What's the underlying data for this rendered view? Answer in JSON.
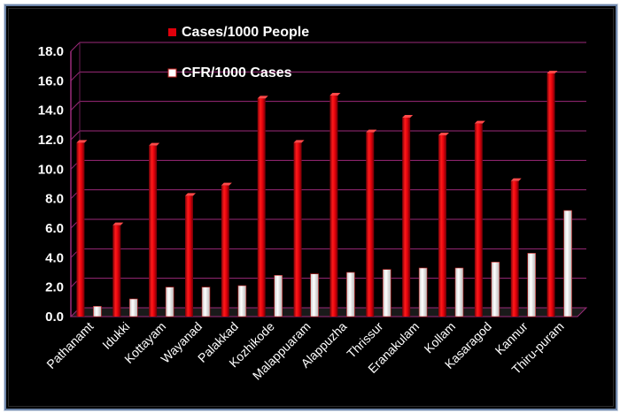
{
  "chart_data": {
    "type": "bar",
    "title": "",
    "xlabel": "",
    "ylabel": "",
    "ylim": [
      0,
      18
    ],
    "yticks": [
      "0.0",
      "2.0",
      "4.0",
      "6.0",
      "8.0",
      "10.0",
      "12.0",
      "14.0",
      "16.0",
      "18.0"
    ],
    "grid": true,
    "legend_position": "top-center",
    "background": "#000000",
    "categories": [
      "Pathanamt",
      "Idukki",
      "Kottayam",
      "Wayanad",
      "Palakkad",
      "Kozhikode",
      "Malappuaram",
      "Alappuzha",
      "Thrissur",
      "Eranakulam",
      "Kollam",
      "Kasaragod",
      "Kannur",
      "Thiru-puram"
    ],
    "series": [
      {
        "name": "Cases/1000 People",
        "color": "#e0000b",
        "values": [
          11.8,
          6.2,
          11.6,
          8.2,
          8.9,
          14.8,
          11.8,
          15.0,
          12.5,
          13.5,
          12.3,
          13.1,
          9.2,
          16.5
        ]
      },
      {
        "name": "CFR/1000 Cases",
        "color": "#ffffff",
        "values": [
          0.7,
          1.2,
          2.0,
          2.0,
          2.1,
          2.8,
          2.9,
          3.0,
          3.2,
          3.3,
          3.3,
          3.7,
          4.3,
          7.2
        ]
      }
    ]
  }
}
